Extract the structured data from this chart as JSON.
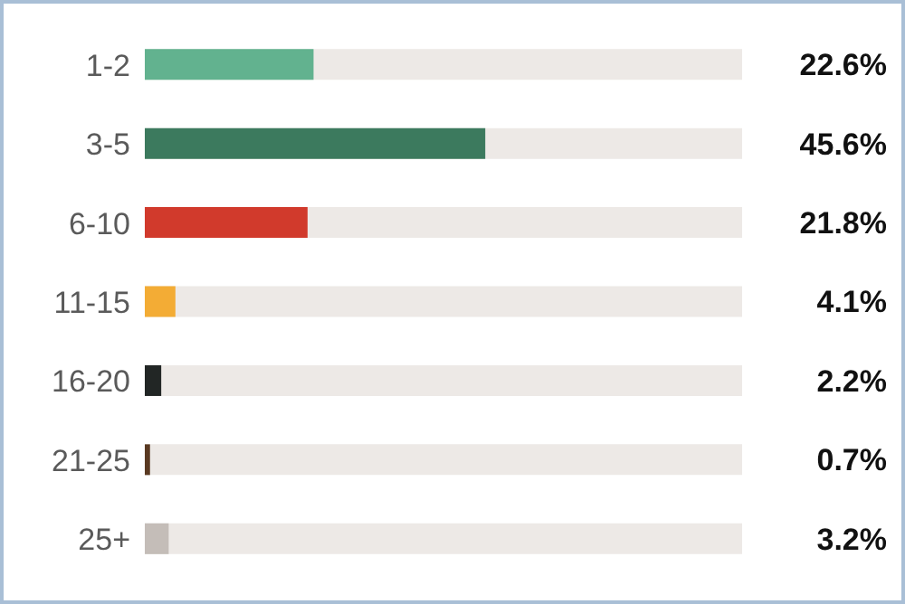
{
  "chart_data": {
    "type": "bar",
    "orientation": "horizontal",
    "categories": [
      "1-2",
      "3-5",
      "6-10",
      "11-15",
      "16-20",
      "21-25",
      "25+"
    ],
    "values": [
      22.6,
      45.6,
      21.8,
      4.1,
      2.2,
      0.7,
      3.2
    ],
    "colors": [
      "#62b28f",
      "#3c7a5e",
      "#d13a2c",
      "#f3ac35",
      "#222625",
      "#5a3a22",
      "#c4bdb8"
    ],
    "value_labels": [
      "22.6%",
      "45.6%",
      "21.8%",
      "4.1%",
      "2.2%",
      "0.7%",
      "3.2%"
    ],
    "xlim": [
      0,
      80
    ],
    "tick_labels": "y",
    "grid": false,
    "legend": false
  }
}
